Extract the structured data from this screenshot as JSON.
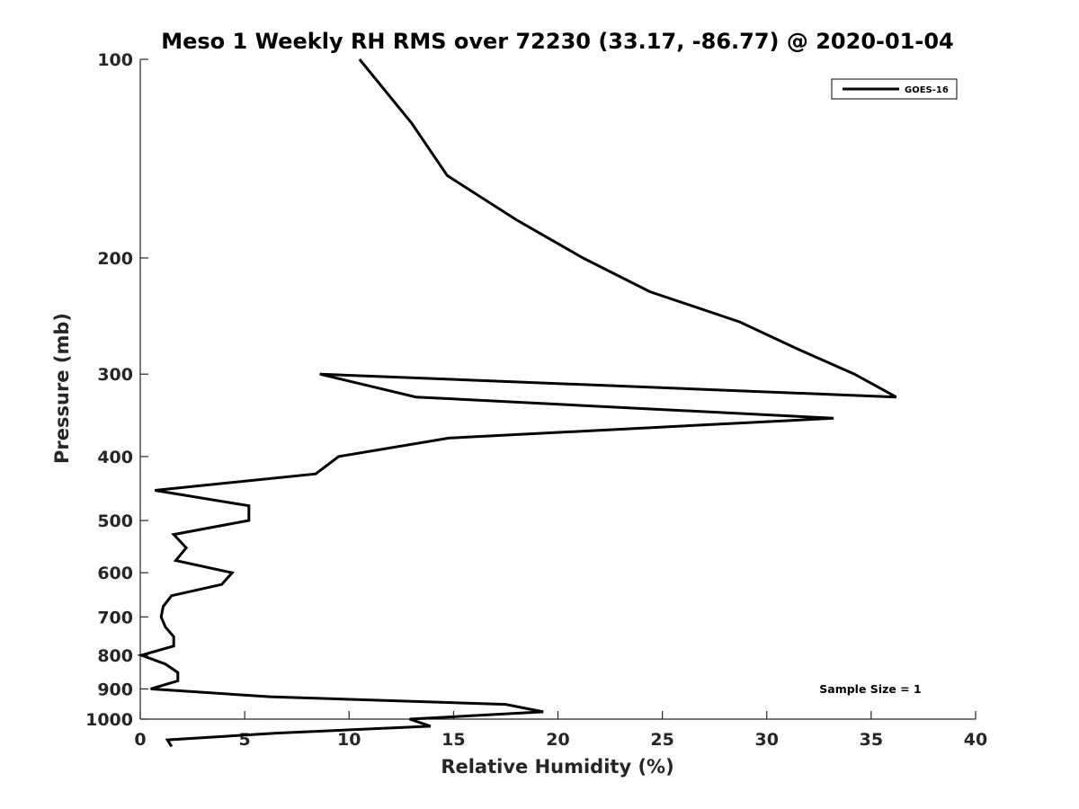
{
  "chart_data": {
    "type": "line",
    "title": "Meso 1 Weekly RH RMS over 72230 (33.17, -86.77) @ 2020-01-04",
    "xlabel": "Relative Humidity (%)",
    "ylabel": "Pressure (mb)",
    "xlim": [
      0,
      40
    ],
    "ylim": [
      100,
      1000
    ],
    "y_scale": "log",
    "y_reversed": true,
    "xticks": [
      0,
      5,
      10,
      15,
      20,
      25,
      30,
      35,
      40
    ],
    "yticks": [
      100,
      200,
      300,
      400,
      500,
      600,
      700,
      800,
      900,
      1000
    ],
    "xtick_labels": [
      "0",
      "5",
      "10",
      "15",
      "20",
      "25",
      "30",
      "35",
      "40"
    ],
    "ytick_labels": [
      "100",
      "200",
      "300",
      "400",
      "500",
      "600",
      "700",
      "800",
      "900",
      "1000"
    ],
    "grid": false,
    "legend_position": "top-right",
    "series": [
      {
        "name": "GOES-16",
        "color": "#000000",
        "points": [
          [
            10.5,
            100
          ],
          [
            13,
            125
          ],
          [
            14.7,
            150
          ],
          [
            18,
            175
          ],
          [
            21.2,
            200
          ],
          [
            24.4,
            225
          ],
          [
            28.7,
            250
          ],
          [
            31.5,
            275
          ],
          [
            34.2,
            300
          ],
          [
            36.2,
            325
          ],
          [
            8.6,
            300
          ],
          [
            13.2,
            325
          ],
          [
            33.2,
            350
          ],
          [
            14.8,
            375
          ],
          [
            9.5,
            400
          ],
          [
            8.4,
            425
          ],
          [
            0.7,
            450
          ],
          [
            5.2,
            475
          ],
          [
            5.2,
            500
          ],
          [
            1.6,
            525
          ],
          [
            2.2,
            550
          ],
          [
            1.7,
            575
          ],
          [
            4.4,
            600
          ],
          [
            3.9,
            625
          ],
          [
            1.5,
            650
          ],
          [
            1.1,
            675
          ],
          [
            1.0,
            700
          ],
          [
            1.2,
            725
          ],
          [
            1.6,
            750
          ],
          [
            1.6,
            775
          ],
          [
            0.05,
            800
          ],
          [
            1.2,
            825
          ],
          [
            1.8,
            850
          ],
          [
            1.8,
            875
          ],
          [
            0.5,
            900
          ],
          [
            6.2,
            925
          ],
          [
            17.5,
            950
          ],
          [
            19.3,
            975
          ],
          [
            12.9,
            1000
          ],
          [
            13.9,
            1025
          ],
          [
            6.5,
            1050
          ],
          [
            1.3,
            1075
          ],
          [
            1.5,
            1100
          ]
        ]
      }
    ],
    "annotations": [
      "Sample Size = 1"
    ]
  }
}
